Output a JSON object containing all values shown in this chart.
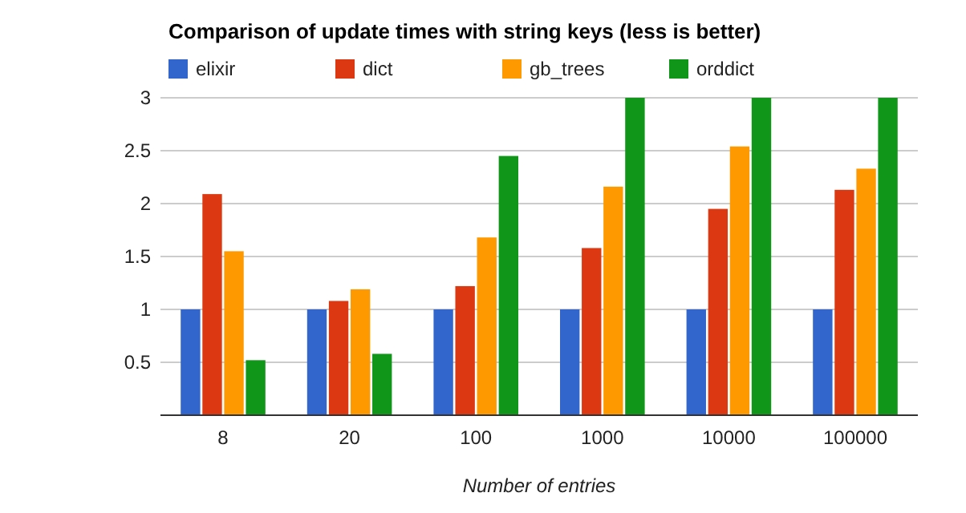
{
  "chart_data": {
    "type": "bar",
    "title": "Comparison of update times with string keys (less is better)",
    "xlabel": "Number of entries",
    "categories": [
      "8",
      "20",
      "100",
      "1000",
      "10000",
      "100000"
    ],
    "series": [
      {
        "name": "elixir",
        "color": "#3366cc",
        "values": [
          1,
          1,
          1,
          1,
          1,
          1
        ]
      },
      {
        "name": "dict",
        "color": "#dc3912",
        "values": [
          2.09,
          1.08,
          1.22,
          1.58,
          1.95,
          2.13
        ]
      },
      {
        "name": "gb_trees",
        "color": "#ff9900",
        "values": [
          1.55,
          1.19,
          1.68,
          2.16,
          2.54,
          2.33
        ]
      },
      {
        "name": "orddict",
        "color": "#109618",
        "values": [
          0.52,
          0.58,
          2.45,
          3,
          3,
          3
        ]
      }
    ],
    "ylim": [
      0,
      3
    ],
    "yticks": [
      0.5,
      1,
      1.5,
      2,
      2.5,
      3
    ],
    "grid": "y",
    "legend": "top left"
  }
}
